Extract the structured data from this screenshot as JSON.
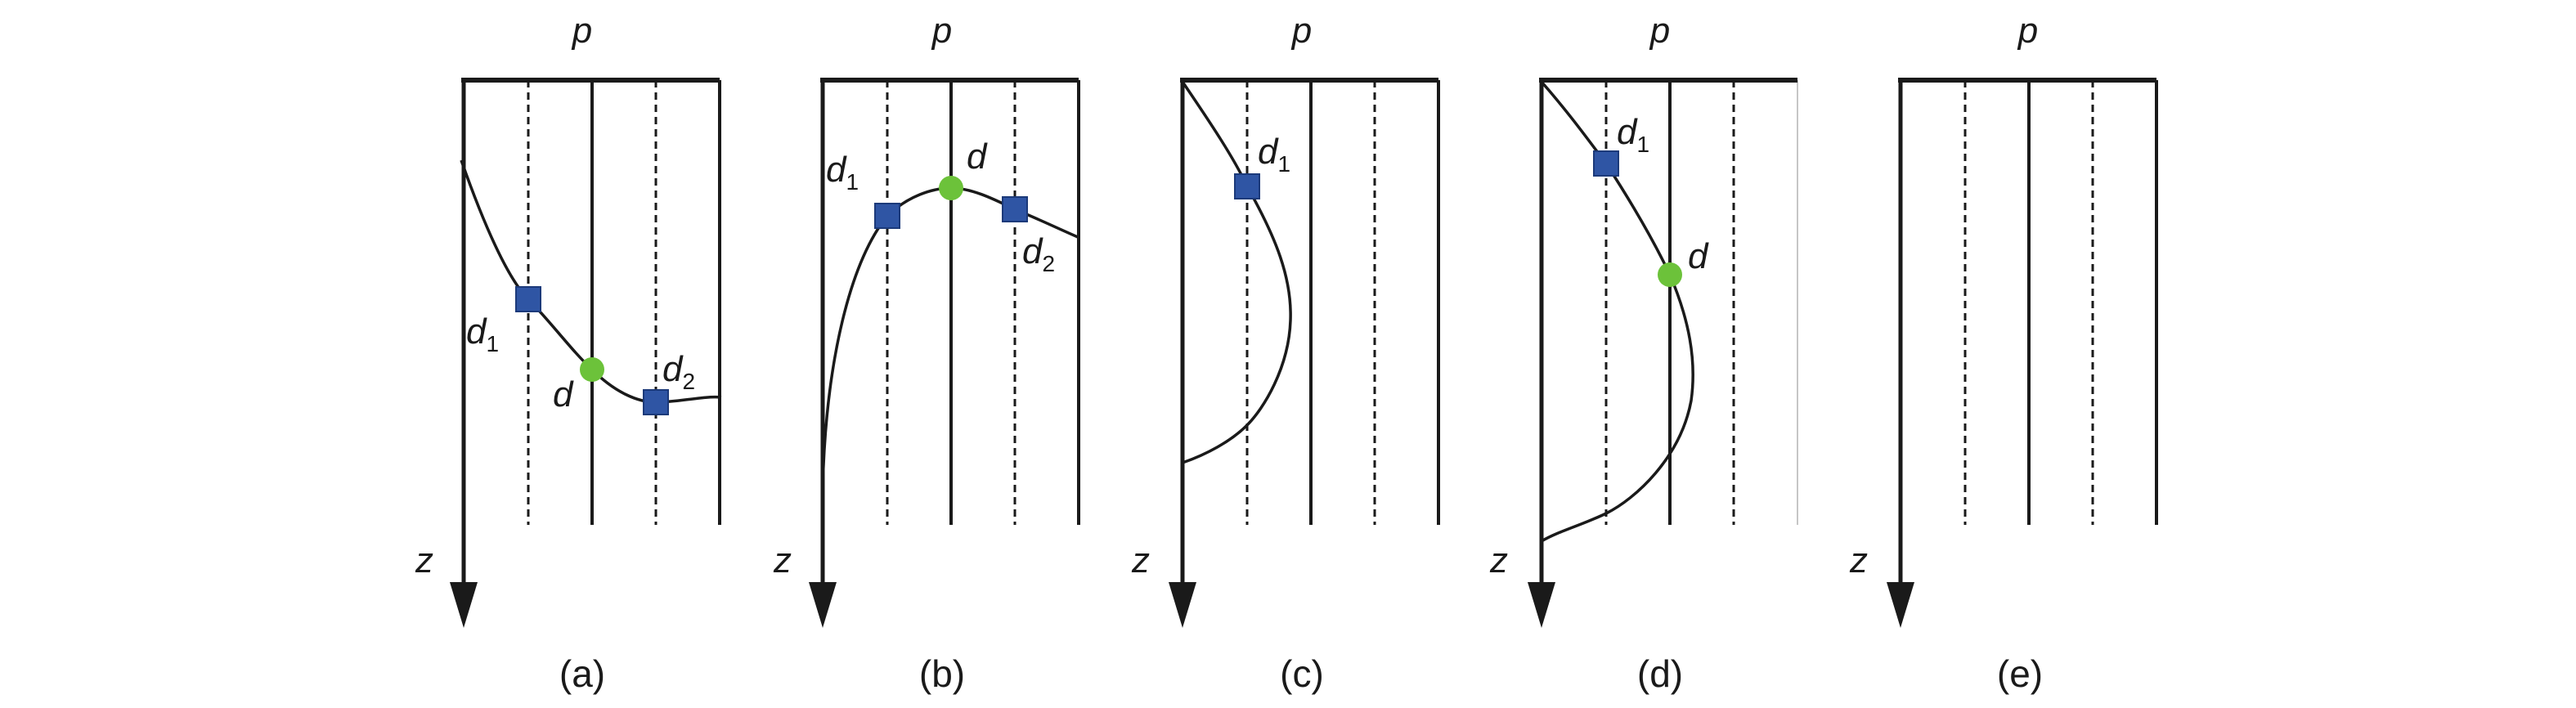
{
  "figure": {
    "panels": [
      {
        "id": "a",
        "caption": "(a)",
        "axis_top_label": "p",
        "axis_left_label": "z",
        "point_labels": {
          "d1": "d",
          "d1_sub": "1",
          "d": "d",
          "d2": "d",
          "d2_sub": "2"
        }
      },
      {
        "id": "b",
        "caption": "(b)",
        "axis_top_label": "p",
        "axis_left_label": "z",
        "point_labels": {
          "d1": "d",
          "d1_sub": "1",
          "d": "d",
          "d2": "d",
          "d2_sub": "2"
        }
      },
      {
        "id": "c",
        "caption": "(c)",
        "axis_top_label": "p",
        "axis_left_label": "z",
        "point_labels": {
          "d1": "d",
          "d1_sub": "1"
        }
      },
      {
        "id": "d",
        "caption": "(d)",
        "axis_top_label": "p",
        "axis_left_label": "z",
        "point_labels": {
          "d1": "d",
          "d1_sub": "1",
          "d": "d"
        }
      },
      {
        "id": "e",
        "caption": "(e)",
        "axis_top_label": "p",
        "axis_left_label": "z",
        "point_labels": {}
      }
    ],
    "colors": {
      "line": "#1a1a1a",
      "square_marker": "#2f55a4",
      "square_marker_edge": "#1c3a7a",
      "circle_marker": "#6cc23a"
    }
  }
}
